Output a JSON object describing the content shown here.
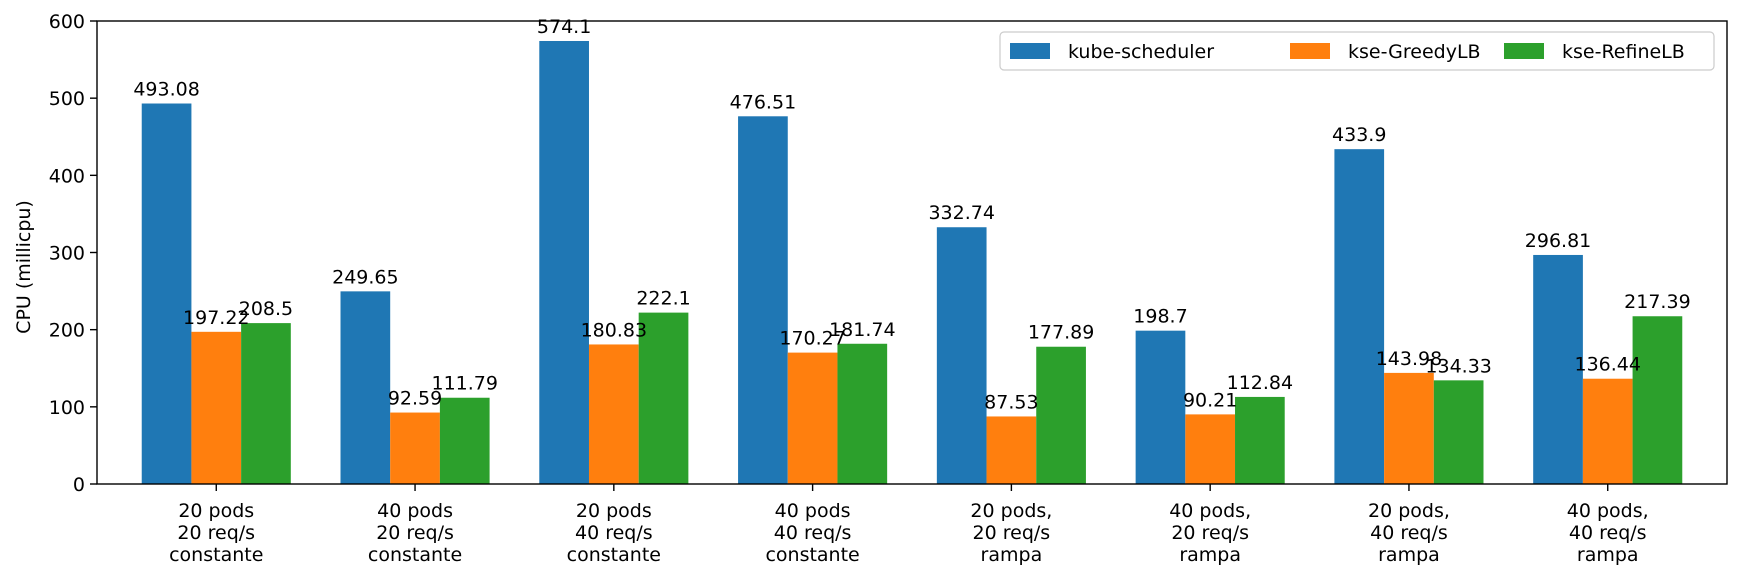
{
  "chart_data": {
    "type": "bar",
    "title": "",
    "xlabel": "",
    "ylabel": "CPU (millicpu)",
    "ylim": [
      0,
      600
    ],
    "yticks": [
      0,
      100,
      200,
      300,
      400,
      500,
      600
    ],
    "grid": false,
    "legend_position": "top-right",
    "categories": [
      [
        "20 pods",
        "20 req/s",
        "constante"
      ],
      [
        "40 pods",
        "20 req/s",
        "constante"
      ],
      [
        "20 pods",
        "40 req/s",
        "constante"
      ],
      [
        "40 pods",
        "40 req/s",
        "constante"
      ],
      [
        "20 pods,",
        "20 req/s",
        "rampa"
      ],
      [
        "40 pods,",
        "20 req/s",
        "rampa"
      ],
      [
        "20 pods,",
        "40 req/s",
        "rampa"
      ],
      [
        "40 pods,",
        "40 req/s",
        "rampa"
      ]
    ],
    "series": [
      {
        "name": "kube-scheduler",
        "color": "#1f77b4",
        "values": [
          493.08,
          249.65,
          574.1,
          476.51,
          332.74,
          198.7,
          433.9,
          296.81
        ]
      },
      {
        "name": "kse-GreedyLB",
        "color": "#ff7f0e",
        "values": [
          197.22,
          92.59,
          180.83,
          170.27,
          87.53,
          90.21,
          143.98,
          136.44
        ]
      },
      {
        "name": "kse-RefineLB",
        "color": "#2ca02c",
        "values": [
          208.5,
          111.79,
          222.1,
          181.74,
          177.89,
          112.84,
          134.33,
          217.39
        ]
      }
    ]
  }
}
